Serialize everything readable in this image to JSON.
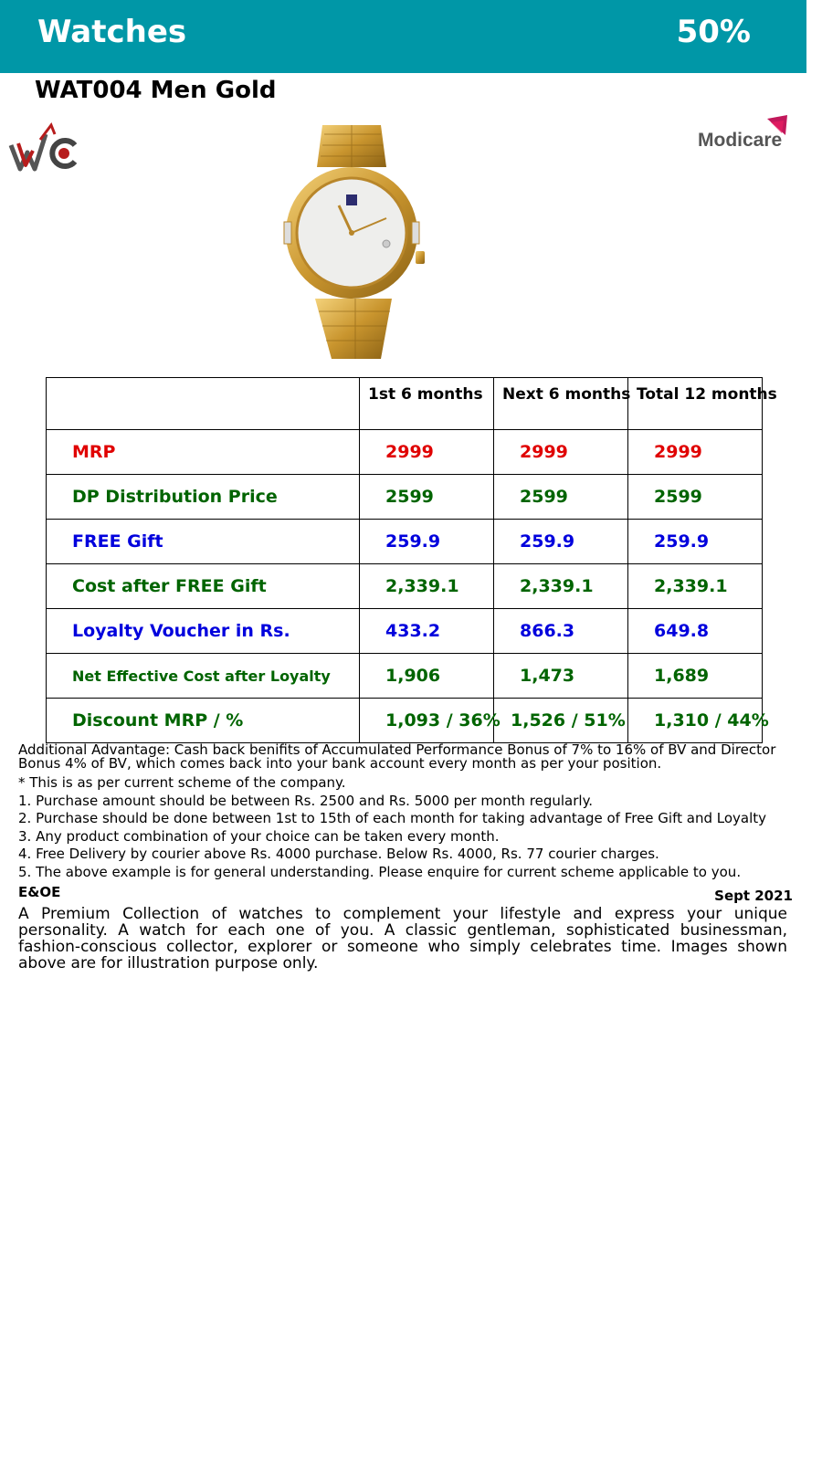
{
  "header": {
    "title": "Watches",
    "discount": "50%",
    "bg_color": "#0097a7"
  },
  "product": {
    "title": "WAT004 Men Gold"
  },
  "logos": {
    "left_logo": "wc-logo",
    "right_logo_text": "Modicare"
  },
  "image": {
    "subject": "gold-watch"
  },
  "table": {
    "columns": [
      "",
      "1st 6 months",
      "Next 6 months",
      "Total 12 months"
    ],
    "rows": [
      {
        "label": "MRP",
        "values": [
          "2999",
          "2999",
          "2999"
        ],
        "color": "#e00000"
      },
      {
        "label": "DP Distribution Price",
        "values": [
          "2599",
          "2599",
          "2599"
        ],
        "color": "#006400"
      },
      {
        "label": "FREE Gift",
        "values": [
          "259.9",
          "259.9",
          "259.9"
        ],
        "color": "#0000dd"
      },
      {
        "label": "Cost after FREE Gift",
        "values": [
          "2,339.1",
          "2,339.1",
          "2,339.1"
        ],
        "color": "#006400"
      },
      {
        "label": "Loyalty Voucher in Rs.",
        "values": [
          "433.2",
          "866.3",
          "649.8"
        ],
        "color": "#0000dd"
      },
      {
        "label": "Net Effective Cost after Loyalty",
        "values": [
          "1,906",
          "1,473",
          "1,689"
        ],
        "color": "#006400"
      },
      {
        "label": "Discount MRP / %",
        "values": [
          "1,093 / 36%",
          "1,526 / 51%",
          "1,310 / 44%"
        ],
        "color": "#006400"
      }
    ]
  },
  "notes": {
    "advantage": "Additional Advantage: Cash back benifits of Accumulated Performance Bonus of 7% to 16% of BV and Director Bonus 4% of BV, which comes back into your bank account every month as per your position.",
    "scheme": "* This is as per current scheme of the company.",
    "items": [
      "1. Purchase amount should be between Rs. 2500 and Rs. 5000 per month regularly.",
      "2. Purchase should be done between 1st to 15th of each month for taking advantage of Free Gift and Loyalty",
      "3. Any product combination of your choice can be taken every month.",
      "4. Free Delivery by courier above Rs. 4000 purchase. Below Rs. 4000, Rs. 77 courier charges.",
      "5. The above example is for general understanding. Please enquire for current scheme applicable to you."
    ]
  },
  "footer": {
    "eoe": "E&OE",
    "date": "Sept 2021",
    "description": "A Premium Collection of watches to complement your lifestyle and express your unique personality. A watch for each one of you. A classic gentleman, sophisticated businessman, fashion-conscious collector, explorer or someone who simply celebrates time. Images shown above are for illustration purpose only."
  }
}
